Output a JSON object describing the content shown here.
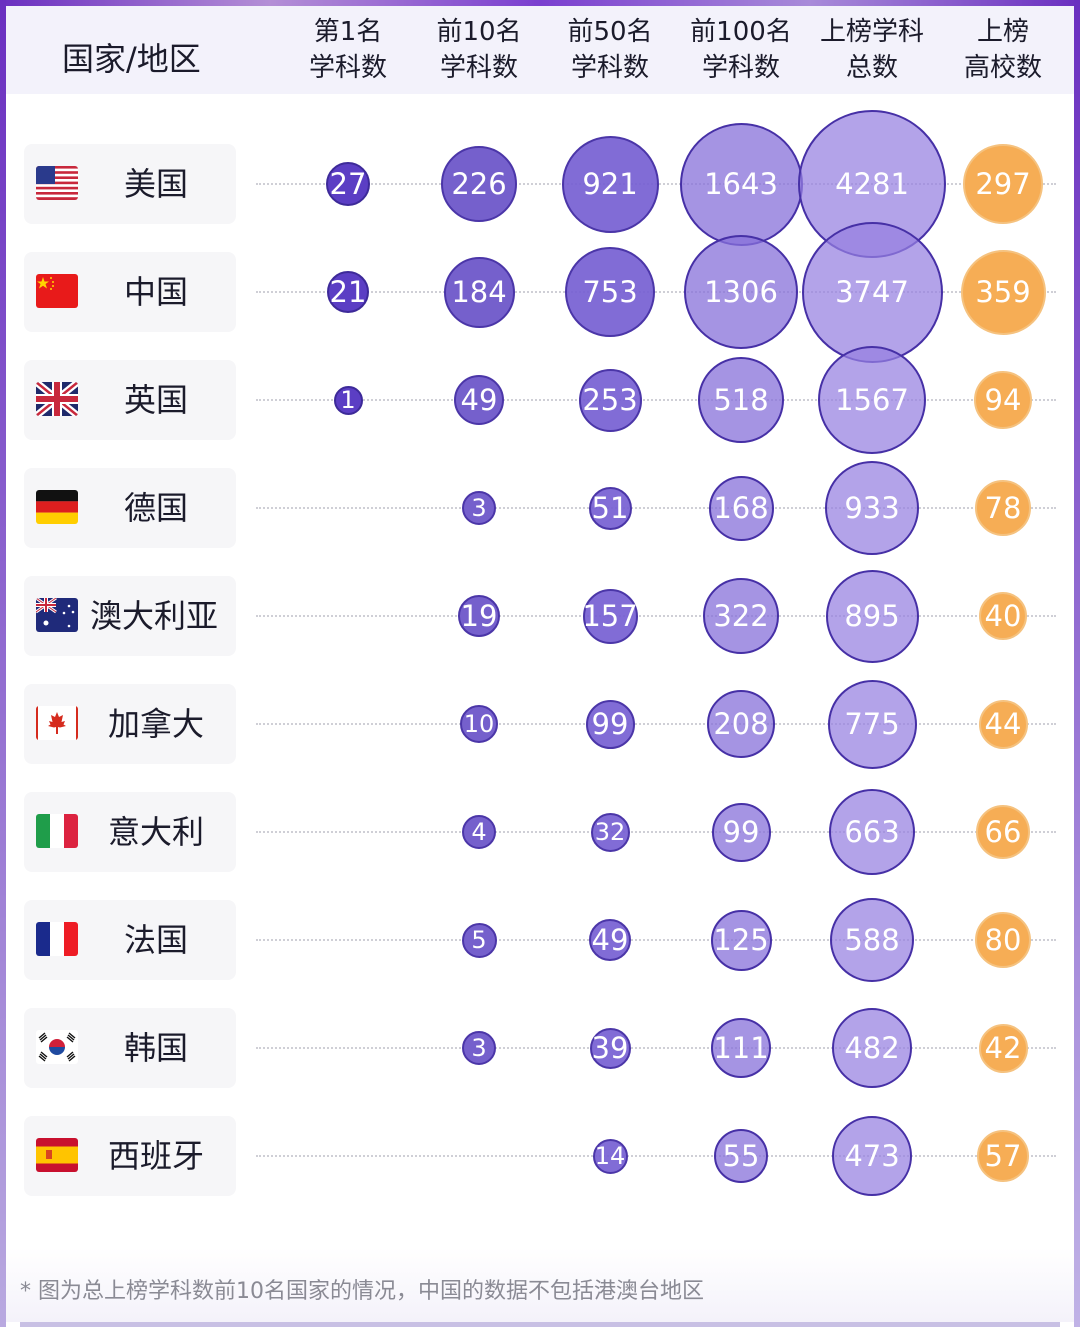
{
  "header": {
    "country_col": "国家/地区",
    "columns": [
      "第1名\n学科数",
      "前10名\n学科数",
      "前50名\n学科数",
      "前100名\n学科数",
      "上榜学科\n总数",
      "上榜\n高校数"
    ]
  },
  "rows": [
    {
      "flag": "us-flag-icon",
      "name": "美国",
      "values": [
        "27",
        "226",
        "921",
        "1643",
        "4281",
        "297"
      ]
    },
    {
      "flag": "cn-flag-icon",
      "name": "中国",
      "values": [
        "21",
        "184",
        "753",
        "1306",
        "3747",
        "359"
      ]
    },
    {
      "flag": "gb-flag-icon",
      "name": "英国",
      "values": [
        "1",
        "49",
        "253",
        "518",
        "1567",
        "94"
      ]
    },
    {
      "flag": "de-flag-icon",
      "name": "德国",
      "values": [
        "",
        "3",
        "51",
        "168",
        "933",
        "78"
      ]
    },
    {
      "flag": "au-flag-icon",
      "name": "澳大利亚",
      "values": [
        "",
        "19",
        "157",
        "322",
        "895",
        "40"
      ]
    },
    {
      "flag": "ca-flag-icon",
      "name": "加拿大",
      "values": [
        "",
        "10",
        "99",
        "208",
        "775",
        "44"
      ]
    },
    {
      "flag": "it-flag-icon",
      "name": "意大利",
      "values": [
        "",
        "4",
        "32",
        "99",
        "663",
        "66"
      ]
    },
    {
      "flag": "fr-flag-icon",
      "name": "法国",
      "values": [
        "",
        "5",
        "49",
        "125",
        "588",
        "80"
      ]
    },
    {
      "flag": "kr-flag-icon",
      "name": "韩国",
      "values": [
        "",
        "3",
        "39",
        "111",
        "482",
        "42"
      ]
    },
    {
      "flag": "es-flag-icon",
      "name": "西班牙",
      "values": [
        "",
        "",
        "14",
        "55",
        "473",
        "57"
      ]
    }
  ],
  "footnote": "* 图为总上榜学科数前10名国家的情况，中国的数据不包括港澳台地区",
  "colors": {
    "purple_dark": "#5b3ec4",
    "purple_mid": "#7560cc",
    "purple_light": "#9680e0",
    "orange": "#f6ad55",
    "header_bg": "#f3f2fb"
  },
  "chart_data": {
    "type": "table",
    "title": "",
    "categories": [
      "美国",
      "中国",
      "英国",
      "德国",
      "澳大利亚",
      "加拿大",
      "意大利",
      "法国",
      "韩国",
      "西班牙"
    ],
    "series": [
      {
        "name": "第1名学科数",
        "values": [
          27,
          21,
          1,
          null,
          null,
          null,
          null,
          null,
          null,
          null
        ]
      },
      {
        "name": "前10名学科数",
        "values": [
          226,
          184,
          49,
          3,
          19,
          10,
          4,
          5,
          3,
          null
        ]
      },
      {
        "name": "前50名学科数",
        "values": [
          921,
          753,
          253,
          51,
          157,
          99,
          32,
          49,
          39,
          14
        ]
      },
      {
        "name": "前100名学科数",
        "values": [
          1643,
          1306,
          518,
          168,
          322,
          208,
          99,
          125,
          111,
          55
        ]
      },
      {
        "name": "上榜学科总数",
        "values": [
          4281,
          3747,
          1567,
          933,
          895,
          775,
          663,
          588,
          482,
          473
        ]
      },
      {
        "name": "上榜高校数",
        "values": [
          297,
          359,
          94,
          78,
          40,
          44,
          66,
          80,
          42,
          57
        ]
      }
    ],
    "encoding": "bubble size proportional to value; first five columns purple, last column orange",
    "note": "* 图为总上榜学科数前10名国家的情况，中国的数据不包括港澳台地区"
  }
}
